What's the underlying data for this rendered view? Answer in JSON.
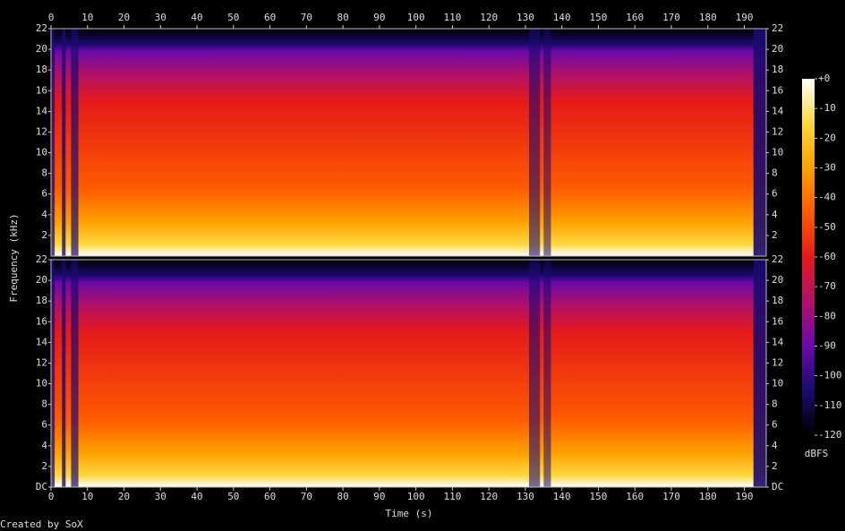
{
  "chart_data": {
    "type": "spectrogram",
    "xlabel": "Time (s)",
    "ylabel": "Frequency (kHz)",
    "credit": "Created by SoX",
    "xlim": [
      0,
      196
    ],
    "xticks": [
      0,
      10,
      20,
      30,
      40,
      50,
      60,
      70,
      80,
      90,
      100,
      110,
      120,
      130,
      140,
      150,
      160,
      170,
      180,
      190
    ],
    "channels": [
      {
        "ylim": [
          0,
          22
        ],
        "yticks": [
          2,
          4,
          6,
          8,
          10,
          12,
          14,
          16,
          18,
          20,
          22
        ]
      },
      {
        "ylim": [
          0,
          22
        ],
        "yticks": [
          {
            "value": 0,
            "label": "DC"
          },
          2,
          4,
          6,
          8,
          10,
          12,
          14,
          16,
          18,
          20,
          22
        ]
      }
    ],
    "colorbar": {
      "label": "dBFS",
      "lim": [
        -120,
        0
      ],
      "ticks": [
        {
          "value": 0,
          "label": "+0"
        },
        -10,
        -20,
        -30,
        -40,
        -50,
        -60,
        -70,
        -80,
        -90,
        -100,
        -110,
        -120
      ]
    },
    "colormap": [
      "#000000",
      "#1c0a6e",
      "#6a0aa8",
      "#b0106a",
      "#e41a1a",
      "#ff5a00",
      "#ffa000",
      "#ffd840",
      "#ffffff"
    ]
  }
}
